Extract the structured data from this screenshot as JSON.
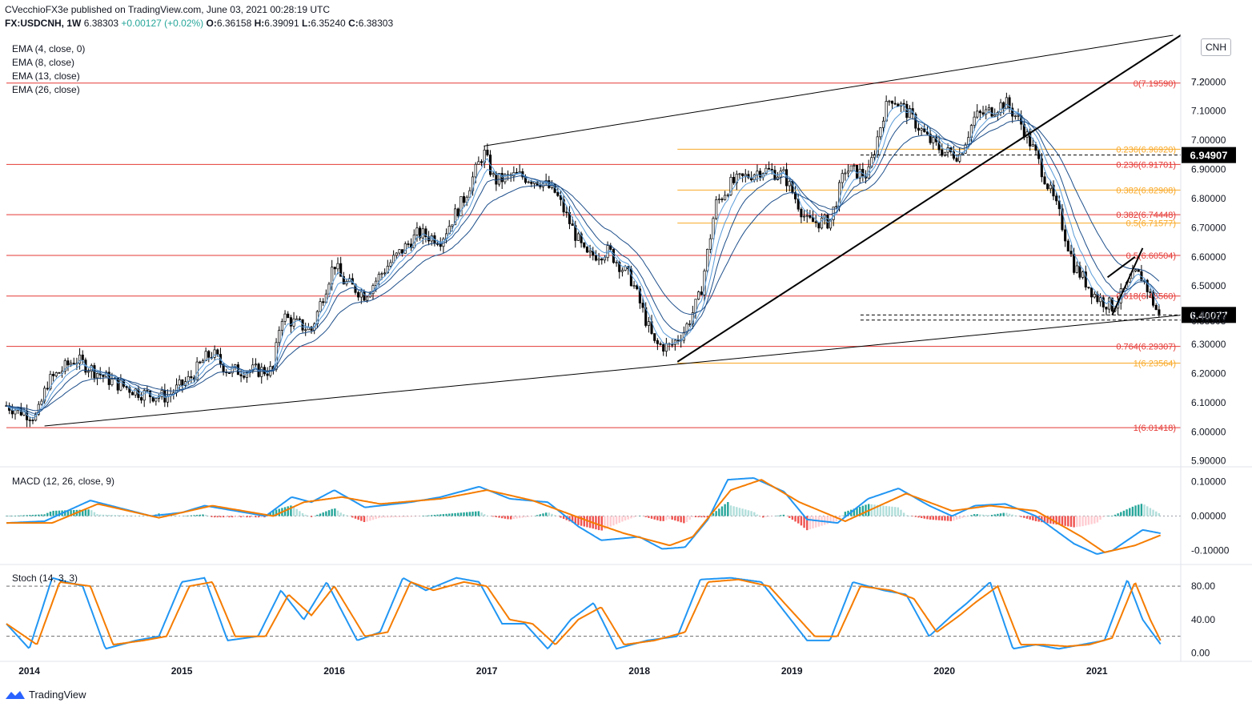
{
  "header": {
    "published_line": "CVecchioFX3e published on TradingView.com, June 03, 2021 00:28:19 UTC",
    "symbol_line": "FX:USDCNH, 1W",
    "last": "6.38303",
    "change": "+0.00127 (+0.02%)",
    "open_label": "O:",
    "open": "6.36158",
    "high_label": "H:",
    "high": "6.39091",
    "low_label": "L:",
    "low": "6.35240",
    "close_label": "C:",
    "close": "6.38303"
  },
  "currency_button": "CNH",
  "indicators": {
    "ema_labels": [
      "EMA (4, close, 0)",
      "EMA (8, close)",
      "EMA (13, close)",
      "EMA (26, close)"
    ],
    "macd_label": "MACD (12, 26, close, 9)",
    "stoch_label": "Stoch (14, 3, 3)"
  },
  "brand": "TradingView",
  "colors": {
    "ema_dark": "#1e4f8a",
    "ema_light": "#5a9bd8",
    "macd_line": "#2196f3",
    "signal_line": "#f57c00",
    "hist_up": "#26a69a",
    "hist_up_fade": "#b2dfdb",
    "hist_down": "#ef5350",
    "hist_down_fade": "#ffcdd2",
    "fib_red": "#e53935",
    "fib_orange": "#f9a825",
    "candle": "#000000"
  },
  "chart_data": {
    "type": "candlestick",
    "price_axis_ticks": [
      "7.2",
      "7.20000",
      "7.10000",
      "7.00000",
      "6.90000",
      "6.80000",
      "6.70000",
      "6.60000",
      "6.50000",
      "6.40000",
      "6.30000",
      "6.20000",
      "6.10000",
      "6.00000",
      "5.90000"
    ],
    "price_ylim": [
      5.88,
      7.36
    ],
    "x_ticks": [
      "2014",
      "2015",
      "2016",
      "2017",
      "2018",
      "2019",
      "2020",
      "2021"
    ],
    "x_tick_dates": [
      2014.0,
      2015.0,
      2016.0,
      2017.0,
      2018.0,
      2019.0,
      2020.0,
      2021.0
    ],
    "xlim": [
      2013.85,
      2021.55
    ],
    "price_path": [
      [
        2013.85,
        6.09
      ],
      [
        2014.05,
        6.05
      ],
      [
        2014.12,
        6.17
      ],
      [
        2014.3,
        6.25
      ],
      [
        2014.55,
        6.17
      ],
      [
        2014.75,
        6.13
      ],
      [
        2014.9,
        6.12
      ],
      [
        2015.05,
        6.18
      ],
      [
        2015.15,
        6.25
      ],
      [
        2015.2,
        6.27
      ],
      [
        2015.3,
        6.21
      ],
      [
        2015.6,
        6.21
      ],
      [
        2015.65,
        6.4
      ],
      [
        2015.75,
        6.37
      ],
      [
        2015.85,
        6.35
      ],
      [
        2016.0,
        6.58
      ],
      [
        2016.05,
        6.52
      ],
      [
        2016.2,
        6.47
      ],
      [
        2016.35,
        6.57
      ],
      [
        2016.55,
        6.68
      ],
      [
        2016.7,
        6.66
      ],
      [
        2016.85,
        6.8
      ],
      [
        2016.98,
        6.96
      ],
      [
        2017.05,
        6.86
      ],
      [
        2017.2,
        6.88
      ],
      [
        2017.35,
        6.86
      ],
      [
        2017.45,
        6.82
      ],
      [
        2017.65,
        6.6
      ],
      [
        2017.8,
        6.62
      ],
      [
        2017.95,
        6.52
      ],
      [
        2018.1,
        6.3
      ],
      [
        2018.2,
        6.29
      ],
      [
        2018.3,
        6.35
      ],
      [
        2018.4,
        6.47
      ],
      [
        2018.5,
        6.78
      ],
      [
        2018.6,
        6.85
      ],
      [
        2018.8,
        6.9
      ],
      [
        2018.95,
        6.88
      ],
      [
        2019.1,
        6.72
      ],
      [
        2019.25,
        6.72
      ],
      [
        2019.35,
        6.9
      ],
      [
        2019.5,
        6.88
      ],
      [
        2019.6,
        7.09
      ],
      [
        2019.65,
        7.15
      ],
      [
        2019.75,
        7.1
      ],
      [
        2019.9,
        7.0
      ],
      [
        2020.0,
        6.96
      ],
      [
        2020.1,
        6.95
      ],
      [
        2020.2,
        7.08
      ],
      [
        2020.3,
        7.1
      ],
      [
        2020.4,
        7.13
      ],
      [
        2020.5,
        7.06
      ],
      [
        2020.6,
        6.95
      ],
      [
        2020.75,
        6.75
      ],
      [
        2020.85,
        6.57
      ],
      [
        2021.0,
        6.46
      ],
      [
        2021.1,
        6.43
      ],
      [
        2021.15,
        6.46
      ],
      [
        2021.25,
        6.54
      ],
      [
        2021.3,
        6.53
      ],
      [
        2021.38,
        6.43
      ],
      [
        2021.42,
        6.38
      ]
    ],
    "fib_levels": [
      {
        "label": "0(7.19590)",
        "value": 7.1959,
        "color": "red",
        "start": 2013.85
      },
      {
        "label": "0.236(6.96920)",
        "value": 6.9692,
        "color": "orange",
        "start": 2018.25
      },
      {
        "label": "0.236(6.91701)",
        "value": 6.91701,
        "color": "red",
        "start": 2013.85
      },
      {
        "label": "0.382(6.82908)",
        "value": 6.82908,
        "color": "orange",
        "start": 2018.25
      },
      {
        "label": "0.382(6.74448)",
        "value": 6.74448,
        "color": "red",
        "start": 2013.85
      },
      {
        "label": "0.5(6.71577)",
        "value": 6.71577,
        "color": "orange",
        "start": 2018.25
      },
      {
        "label": "0.5(6.60504)",
        "value": 6.60504,
        "color": "red",
        "start": 2013.85
      },
      {
        "label": "0.618(6.46560)",
        "value": 6.4656,
        "color": "red",
        "start": 2013.85
      },
      {
        "label": "0.764(6.29307)",
        "value": 6.29307,
        "color": "red",
        "start": 2013.85
      },
      {
        "label": "1(6.23564)",
        "value": 6.23564,
        "color": "orange",
        "start": 2018.25
      },
      {
        "label": "1(6.01418)",
        "value": 6.01418,
        "color": "red",
        "start": 2013.85
      }
    ],
    "highlight_labels": [
      {
        "label": "6.94907",
        "value": 6.94907,
        "style": "black"
      },
      {
        "label": "6.40077",
        "value": 6.40077,
        "style": "black"
      },
      {
        "label": "6.38303",
        "value": 6.38303,
        "style": "plain"
      }
    ],
    "trendlines": [
      {
        "from": [
          2014.1,
          6.02
        ],
        "to": [
          2021.55,
          6.4
        ],
        "weight": "thin"
      },
      {
        "from": [
          2016.98,
          6.98
        ],
        "to": [
          2021.5,
          7.36
        ],
        "weight": "thin"
      },
      {
        "from": [
          2018.25,
          6.24
        ],
        "to": [
          2021.55,
          7.36
        ],
        "weight": "thick"
      },
      {
        "from": [
          2021.1,
          6.4
        ],
        "to": [
          2021.3,
          6.63
        ],
        "weight": "thick"
      },
      {
        "from": [
          2021.07,
          6.53
        ],
        "to": [
          2021.25,
          6.6
        ],
        "weight": "thick"
      }
    ],
    "macd": {
      "axis_ticks": [
        "0.10000",
        "0.00000",
        "-0.10000"
      ],
      "ylim": [
        -0.14,
        0.14
      ],
      "macd_path": [
        [
          2013.85,
          -0.02
        ],
        [
          2014.1,
          -0.015
        ],
        [
          2014.4,
          0.045
        ],
        [
          2014.8,
          0.0
        ],
        [
          2015.0,
          0.01
        ],
        [
          2015.15,
          0.03
        ],
        [
          2015.55,
          0.0
        ],
        [
          2015.72,
          0.055
        ],
        [
          2015.85,
          0.04
        ],
        [
          2016.0,
          0.075
        ],
        [
          2016.2,
          0.025
        ],
        [
          2016.5,
          0.04
        ],
        [
          2016.7,
          0.055
        ],
        [
          2016.95,
          0.085
        ],
        [
          2017.15,
          0.05
        ],
        [
          2017.4,
          0.04
        ],
        [
          2017.6,
          -0.03
        ],
        [
          2017.75,
          -0.07
        ],
        [
          2018.0,
          -0.06
        ],
        [
          2018.15,
          -0.095
        ],
        [
          2018.3,
          -0.09
        ],
        [
          2018.45,
          -0.01
        ],
        [
          2018.58,
          0.105
        ],
        [
          2018.75,
          0.11
        ],
        [
          2018.95,
          0.07
        ],
        [
          2019.1,
          -0.01
        ],
        [
          2019.3,
          -0.02
        ],
        [
          2019.5,
          0.05
        ],
        [
          2019.7,
          0.08
        ],
        [
          2019.9,
          0.03
        ],
        [
          2020.05,
          0.0
        ],
        [
          2020.2,
          0.03
        ],
        [
          2020.4,
          0.035
        ],
        [
          2020.6,
          0.0
        ],
        [
          2020.85,
          -0.08
        ],
        [
          2021.0,
          -0.11
        ],
        [
          2021.1,
          -0.1
        ],
        [
          2021.3,
          -0.04
        ],
        [
          2021.42,
          -0.05
        ]
      ],
      "signal_path": [
        [
          2013.85,
          -0.02
        ],
        [
          2014.15,
          -0.02
        ],
        [
          2014.45,
          0.035
        ],
        [
          2014.85,
          -0.005
        ],
        [
          2015.2,
          0.03
        ],
        [
          2015.6,
          0.0
        ],
        [
          2015.8,
          0.04
        ],
        [
          2016.05,
          0.055
        ],
        [
          2016.3,
          0.035
        ],
        [
          2016.7,
          0.05
        ],
        [
          2017.0,
          0.075
        ],
        [
          2017.3,
          0.045
        ],
        [
          2017.7,
          -0.02
        ],
        [
          2017.9,
          -0.05
        ],
        [
          2018.2,
          -0.085
        ],
        [
          2018.35,
          -0.06
        ],
        [
          2018.6,
          0.075
        ],
        [
          2018.8,
          0.105
        ],
        [
          2019.05,
          0.04
        ],
        [
          2019.35,
          -0.015
        ],
        [
          2019.75,
          0.065
        ],
        [
          2020.05,
          0.015
        ],
        [
          2020.3,
          0.03
        ],
        [
          2020.6,
          0.015
        ],
        [
          2020.9,
          -0.06
        ],
        [
          2021.05,
          -0.105
        ],
        [
          2021.25,
          -0.085
        ],
        [
          2021.42,
          -0.055
        ]
      ]
    },
    "stoch": {
      "axis_ticks": [
        "80.00",
        "40.00",
        "0.00"
      ],
      "ylim": [
        -10,
        105
      ],
      "bands": [
        80,
        20
      ],
      "k_path": [
        [
          2013.85,
          35
        ],
        [
          2014.0,
          5
        ],
        [
          2014.15,
          90
        ],
        [
          2014.35,
          80
        ],
        [
          2014.5,
          5
        ],
        [
          2014.7,
          15
        ],
        [
          2014.85,
          20
        ],
        [
          2015.0,
          85
        ],
        [
          2015.15,
          90
        ],
        [
          2015.3,
          15
        ],
        [
          2015.5,
          20
        ],
        [
          2015.65,
          75
        ],
        [
          2015.8,
          40
        ],
        [
          2015.95,
          85
        ],
        [
          2016.15,
          15
        ],
        [
          2016.3,
          25
        ],
        [
          2016.45,
          90
        ],
        [
          2016.6,
          75
        ],
        [
          2016.8,
          90
        ],
        [
          2016.95,
          85
        ],
        [
          2017.1,
          35
        ],
        [
          2017.25,
          35
        ],
        [
          2017.4,
          5
        ],
        [
          2017.55,
          40
        ],
        [
          2017.7,
          60
        ],
        [
          2017.85,
          5
        ],
        [
          2018.05,
          15
        ],
        [
          2018.25,
          20
        ],
        [
          2018.4,
          88
        ],
        [
          2018.6,
          90
        ],
        [
          2018.8,
          85
        ],
        [
          2018.95,
          50
        ],
        [
          2019.1,
          15
        ],
        [
          2019.25,
          15
        ],
        [
          2019.4,
          85
        ],
        [
          2019.6,
          75
        ],
        [
          2019.75,
          70
        ],
        [
          2019.9,
          20
        ],
        [
          2020.05,
          45
        ],
        [
          2020.15,
          60
        ],
        [
          2020.3,
          85
        ],
        [
          2020.45,
          5
        ],
        [
          2020.6,
          10
        ],
        [
          2020.75,
          5
        ],
        [
          2020.9,
          10
        ],
        [
          2021.05,
          15
        ],
        [
          2021.2,
          88
        ],
        [
          2021.3,
          40
        ],
        [
          2021.42,
          10
        ]
      ],
      "d_path": [
        [
          2013.85,
          35
        ],
        [
          2014.05,
          10
        ],
        [
          2014.2,
          85
        ],
        [
          2014.4,
          80
        ],
        [
          2014.55,
          10
        ],
        [
          2014.75,
          15
        ],
        [
          2014.9,
          20
        ],
        [
          2015.05,
          80
        ],
        [
          2015.2,
          85
        ],
        [
          2015.35,
          20
        ],
        [
          2015.55,
          20
        ],
        [
          2015.7,
          70
        ],
        [
          2015.85,
          45
        ],
        [
          2016.0,
          80
        ],
        [
          2016.2,
          20
        ],
        [
          2016.35,
          25
        ],
        [
          2016.5,
          85
        ],
        [
          2016.65,
          75
        ],
        [
          2016.85,
          85
        ],
        [
          2017.0,
          80
        ],
        [
          2017.15,
          40
        ],
        [
          2017.3,
          35
        ],
        [
          2017.45,
          10
        ],
        [
          2017.6,
          40
        ],
        [
          2017.75,
          55
        ],
        [
          2017.9,
          10
        ],
        [
          2018.1,
          15
        ],
        [
          2018.3,
          25
        ],
        [
          2018.45,
          85
        ],
        [
          2018.65,
          88
        ],
        [
          2018.85,
          80
        ],
        [
          2019.0,
          50
        ],
        [
          2019.15,
          20
        ],
        [
          2019.3,
          20
        ],
        [
          2019.45,
          80
        ],
        [
          2019.65,
          75
        ],
        [
          2019.8,
          65
        ],
        [
          2019.95,
          25
        ],
        [
          2020.1,
          45
        ],
        [
          2020.2,
          60
        ],
        [
          2020.35,
          80
        ],
        [
          2020.5,
          10
        ],
        [
          2020.65,
          10
        ],
        [
          2020.8,
          8
        ],
        [
          2020.95,
          10
        ],
        [
          2021.1,
          18
        ],
        [
          2021.25,
          85
        ],
        [
          2021.35,
          40
        ],
        [
          2021.42,
          14
        ]
      ]
    }
  }
}
